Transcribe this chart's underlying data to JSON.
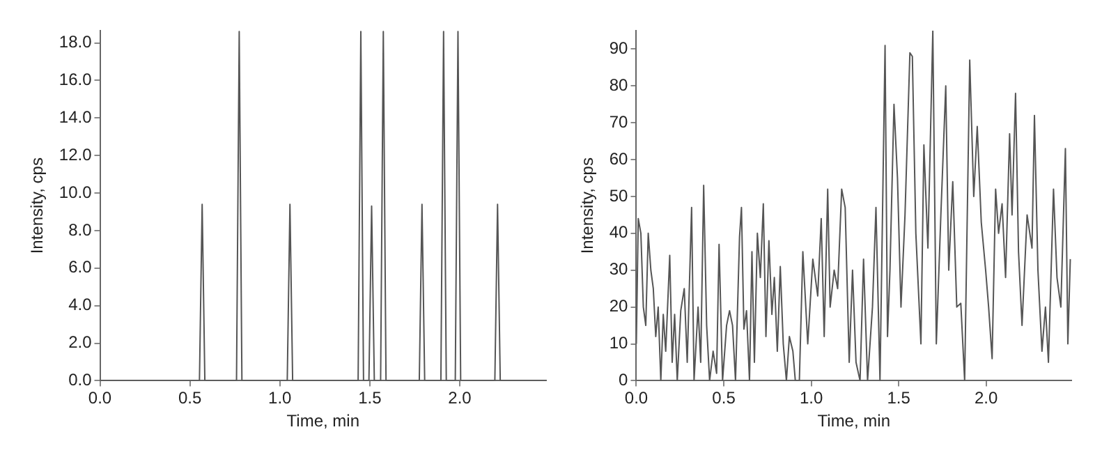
{
  "chart_data": [
    {
      "type": "line",
      "xlabel": "Time, min",
      "ylabel": "Intensity, cps",
      "x": [
        0,
        0.553,
        0.568,
        0.583,
        0.759,
        0.774,
        0.789,
        1.041,
        1.056,
        1.071,
        1.435,
        1.45,
        1.465,
        1.495,
        1.51,
        1.525,
        1.56,
        1.575,
        1.59,
        1.775,
        1.79,
        1.805,
        1.895,
        1.91,
        1.925,
        1.975,
        1.99,
        2.005,
        2.195,
        2.21,
        2.225,
        2.48
      ],
      "series": [
        {
          "color": "#555555",
          "values": [
            0,
            0,
            9.4,
            0,
            0,
            18.6,
            0,
            0,
            9.4,
            0,
            0,
            18.6,
            0,
            0,
            9.3,
            0,
            0,
            18.6,
            0,
            0,
            9.4,
            0,
            0,
            18.6,
            0,
            0,
            18.6,
            0,
            0,
            9.4,
            0,
            0
          ]
        }
      ],
      "xlim": [
        0,
        2.48
      ],
      "ylim": [
        0,
        18.65
      ],
      "xticks": [
        {
          "value": 0,
          "label": "0.0"
        },
        {
          "value": 0.5,
          "label": "0.5"
        },
        {
          "value": 1,
          "label": "1.0"
        },
        {
          "value": 1.5,
          "label": "1.5"
        },
        {
          "value": 2,
          "label": "2.0"
        }
      ],
      "yticks": [
        {
          "value": 0,
          "label": "0.0"
        },
        {
          "value": 2,
          "label": "2.0"
        },
        {
          "value": 4,
          "label": "4.0"
        },
        {
          "value": 6,
          "label": "6.0"
        },
        {
          "value": 8,
          "label": "8.0"
        },
        {
          "value": 10,
          "label": "10.0"
        },
        {
          "value": 12,
          "label": "12.0"
        },
        {
          "value": 14,
          "label": "14.0"
        },
        {
          "value": 16,
          "label": "16.0"
        },
        {
          "value": 18,
          "label": "18.0"
        }
      ],
      "grid": false,
      "legend": false,
      "marker": "none"
    },
    {
      "type": "line",
      "xlabel": "Time, min",
      "ylabel": "Intensity, cps",
      "x": [
        0,
        0.011,
        0.026,
        0.04,
        0.054,
        0.068,
        0.083,
        0.097,
        0.111,
        0.125,
        0.14,
        0.154,
        0.168,
        0.191,
        0.205,
        0.219,
        0.234,
        0.254,
        0.274,
        0.291,
        0.316,
        0.33,
        0.353,
        0.368,
        0.385,
        0.402,
        0.419,
        0.439,
        0.459,
        0.473,
        0.493,
        0.516,
        0.533,
        0.55,
        0.567,
        0.59,
        0.601,
        0.615,
        0.63,
        0.647,
        0.661,
        0.675,
        0.692,
        0.709,
        0.726,
        0.741,
        0.758,
        0.775,
        0.789,
        0.806,
        0.823,
        0.84,
        0.858,
        0.875,
        0.895,
        0.909,
        0.932,
        0.952,
        0.98,
        1.009,
        1.037,
        1.057,
        1.074,
        1.094,
        1.108,
        1.131,
        1.151,
        1.174,
        1.194,
        1.217,
        1.236,
        1.256,
        1.279,
        1.299,
        1.322,
        1.35,
        1.37,
        1.393,
        1.422,
        1.436,
        1.45,
        1.473,
        1.493,
        1.513,
        1.536,
        1.564,
        1.578,
        1.598,
        1.627,
        1.644,
        1.667,
        1.695,
        1.715,
        1.741,
        1.769,
        1.786,
        1.809,
        1.832,
        1.855,
        1.877,
        1.906,
        1.929,
        1.949,
        1.972,
        1.997,
        2.014,
        2.034,
        2.054,
        2.071,
        2.091,
        2.111,
        2.134,
        2.148,
        2.168,
        2.185,
        2.205,
        2.234,
        2.262,
        2.276,
        2.296,
        2.319,
        2.339,
        2.356,
        2.385,
        2.405,
        2.427,
        2.453,
        2.467,
        2.481
      ],
      "series": [
        {
          "color": "#555555",
          "values": [
            10,
            44,
            40,
            20,
            15,
            40,
            30,
            25,
            12,
            20,
            0,
            18,
            8,
            34,
            5,
            18,
            0,
            19,
            25,
            5,
            47,
            0,
            20,
            5,
            53,
            15,
            0,
            8,
            2,
            37,
            0,
            15,
            19,
            15,
            0,
            39,
            47,
            14,
            19,
            0,
            35,
            5,
            40,
            28,
            48,
            12,
            38,
            18,
            28,
            8,
            31,
            10,
            0,
            12,
            8,
            0,
            0,
            35,
            10,
            33,
            23,
            44,
            12,
            52,
            20,
            30,
            25,
            52,
            47,
            5,
            30,
            5,
            0,
            33,
            0,
            20,
            47,
            0,
            91,
            12,
            30,
            75,
            55,
            20,
            45,
            89,
            88,
            40,
            10,
            64,
            36,
            95,
            10,
            45,
            80,
            30,
            54,
            20,
            21,
            0,
            87,
            50,
            69,
            43,
            30,
            20,
            6,
            52,
            40,
            48,
            28,
            67,
            45,
            78,
            35,
            15,
            45,
            36,
            72,
            30,
            8,
            20,
            5,
            52,
            28,
            20,
            63,
            10,
            33
          ]
        }
      ],
      "xlim": [
        0,
        2.487
      ],
      "ylim": [
        0,
        95
      ],
      "xticks": [
        {
          "value": 0,
          "label": "0.0"
        },
        {
          "value": 0.5,
          "label": "0.5"
        },
        {
          "value": 1,
          "label": "1.0"
        },
        {
          "value": 1.5,
          "label": "1.5"
        },
        {
          "value": 2,
          "label": "2.0"
        }
      ],
      "yticks": [
        0,
        10,
        20,
        30,
        40,
        50,
        60,
        70,
        80,
        90
      ],
      "grid": false,
      "legend": false,
      "marker": "none"
    }
  ]
}
